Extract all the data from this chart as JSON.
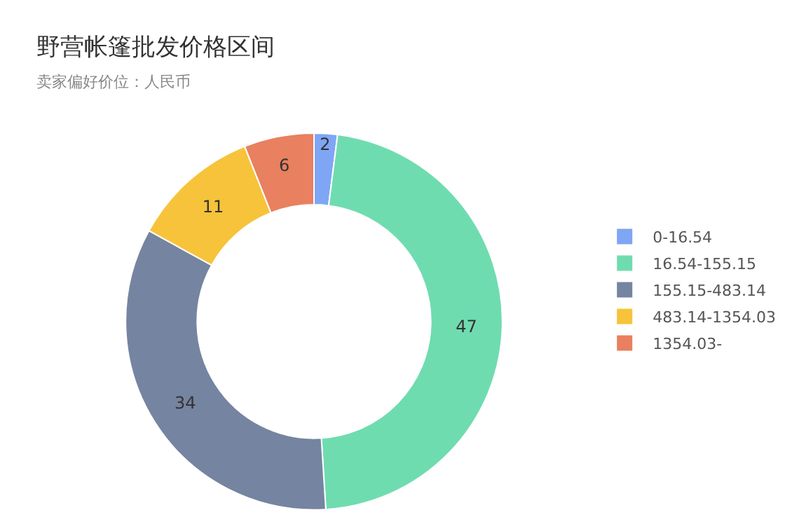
{
  "chart_data": {
    "type": "donut",
    "title": "野营帐篷批发价格区间",
    "subtitle": "卖家偏好价位：人民币",
    "categories": [
      "0-16.54",
      "16.54-155.15",
      "155.15-483.14",
      "483.14-1354.03",
      "1354.03-"
    ],
    "values": [
      2,
      47,
      34,
      11,
      6
    ],
    "colors": [
      "#7fa6f5",
      "#6fdcb0",
      "#7584a0",
      "#f7c33a",
      "#e9805f"
    ],
    "data_labels": true,
    "legend": "right"
  }
}
